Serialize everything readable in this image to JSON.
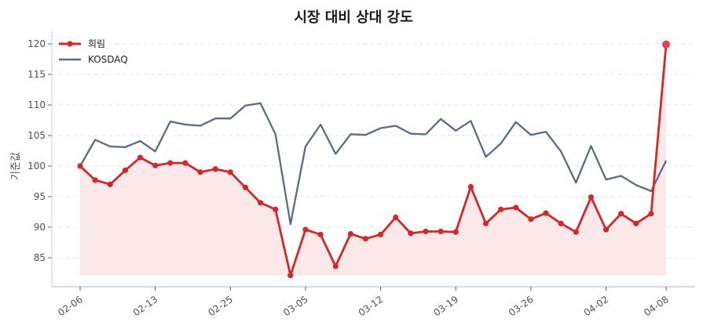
{
  "chart_data": {
    "type": "line",
    "title": "시장 대비 상대 강도",
    "xlabel": "",
    "ylabel": "기준값",
    "ylim": [
      80.7,
      122
    ],
    "yticks": [
      85,
      90,
      95,
      100,
      105,
      110,
      115,
      120
    ],
    "grid": "horizontal dashed",
    "legend_position": "upper left",
    "x_tick_labels": [
      "02-06",
      "02-13",
      "02-25",
      "03-05",
      "03-12",
      "03-19",
      "03-26",
      "04-02",
      "04-08"
    ],
    "x_tick_indices": [
      0,
      5,
      10,
      15,
      20,
      25,
      30,
      35,
      39
    ],
    "n_points": 40,
    "series": [
      {
        "name": "희림",
        "color": "#d62728",
        "marker": "circle",
        "fill_to": 82.1,
        "fill_color": "#fbe9e9",
        "values": [
          100.0,
          97.7,
          97.0,
          99.3,
          101.4,
          100.1,
          100.5,
          100.5,
          99.0,
          99.5,
          99.0,
          96.5,
          94.0,
          92.9,
          82.1,
          89.6,
          88.8,
          83.6,
          88.9,
          88.1,
          88.8,
          91.6,
          89.0,
          89.3,
          89.3,
          89.2,
          96.6,
          90.6,
          92.9,
          93.2,
          91.3,
          92.3,
          90.6,
          89.2,
          94.9,
          89.6,
          92.2,
          90.6,
          92.2,
          119.9
        ]
      },
      {
        "name": "KOSDAQ",
        "color": "#5a6b82",
        "marker": "none",
        "values": [
          100.0,
          104.3,
          103.2,
          103.1,
          104.1,
          102.4,
          107.3,
          106.8,
          106.6,
          107.8,
          107.8,
          109.9,
          110.3,
          105.2,
          90.5,
          103.2,
          106.8,
          102.0,
          105.2,
          105.1,
          106.2,
          106.6,
          105.3,
          105.2,
          107.7,
          105.8,
          107.4,
          101.5,
          103.7,
          107.2,
          105.1,
          105.6,
          102.4,
          97.3,
          103.3,
          97.8,
          98.4,
          96.9,
          95.9,
          100.9
        ]
      }
    ]
  }
}
